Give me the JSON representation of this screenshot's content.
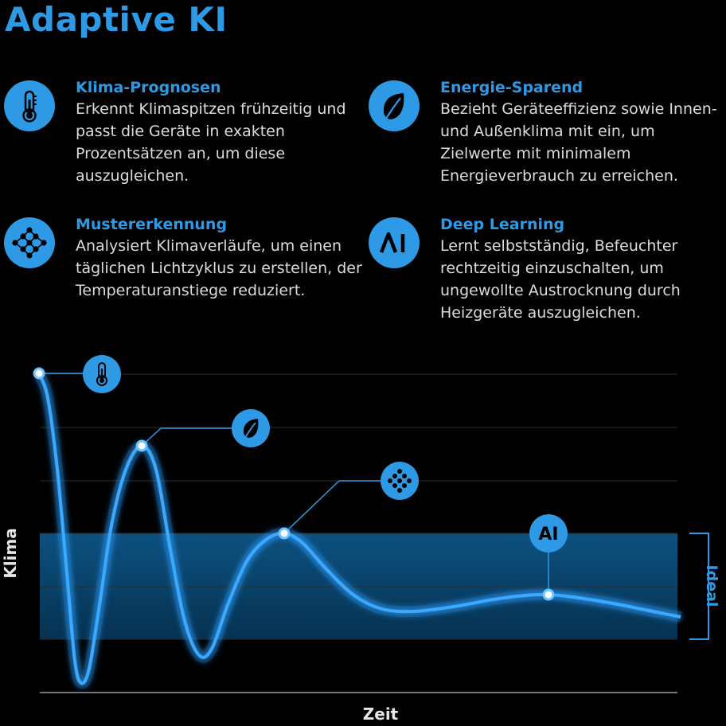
{
  "title": "Adaptive KI",
  "features": [
    {
      "heading": "Klima-Prognosen",
      "text": "Erkennt Klimaspitzen frühzeitig und passt die Geräte in exakten Prozentsätzen an, um diese auszugleichen.",
      "icon": "thermometer-icon"
    },
    {
      "heading": "Energie-Sparend",
      "text": "Bezieht Geräteeffizienz sowie Innen- und Außenklima mit ein, um Zielwerte mit minimalem Energieverbrauch zu erreichen.",
      "icon": "leaf-icon"
    },
    {
      "heading": "Mustererkennung",
      "text": "Analysiert Klimaverläufe, um einen täglichen Lichtzyklus zu erstellen, der Temperaturanstiege reduziert.",
      "icon": "pattern-dots-icon"
    },
    {
      "heading": "Deep Learning",
      "text": "Lernt selbstständig, Befeuchter rechtzeitig einzuschalten, um ungewollte Austrocknung durch Heizgeräte auszugleichen.",
      "icon": "ai-icon"
    }
  ],
  "chart": {
    "ylabel": "Klima",
    "xlabel": "Zeit",
    "band_label": "Ideal",
    "ai_text": "AI"
  },
  "colors": {
    "accent": "#2e9ae6",
    "background": "#000000",
    "band": "#0f5f96",
    "curve": "#3aa9ff"
  }
}
